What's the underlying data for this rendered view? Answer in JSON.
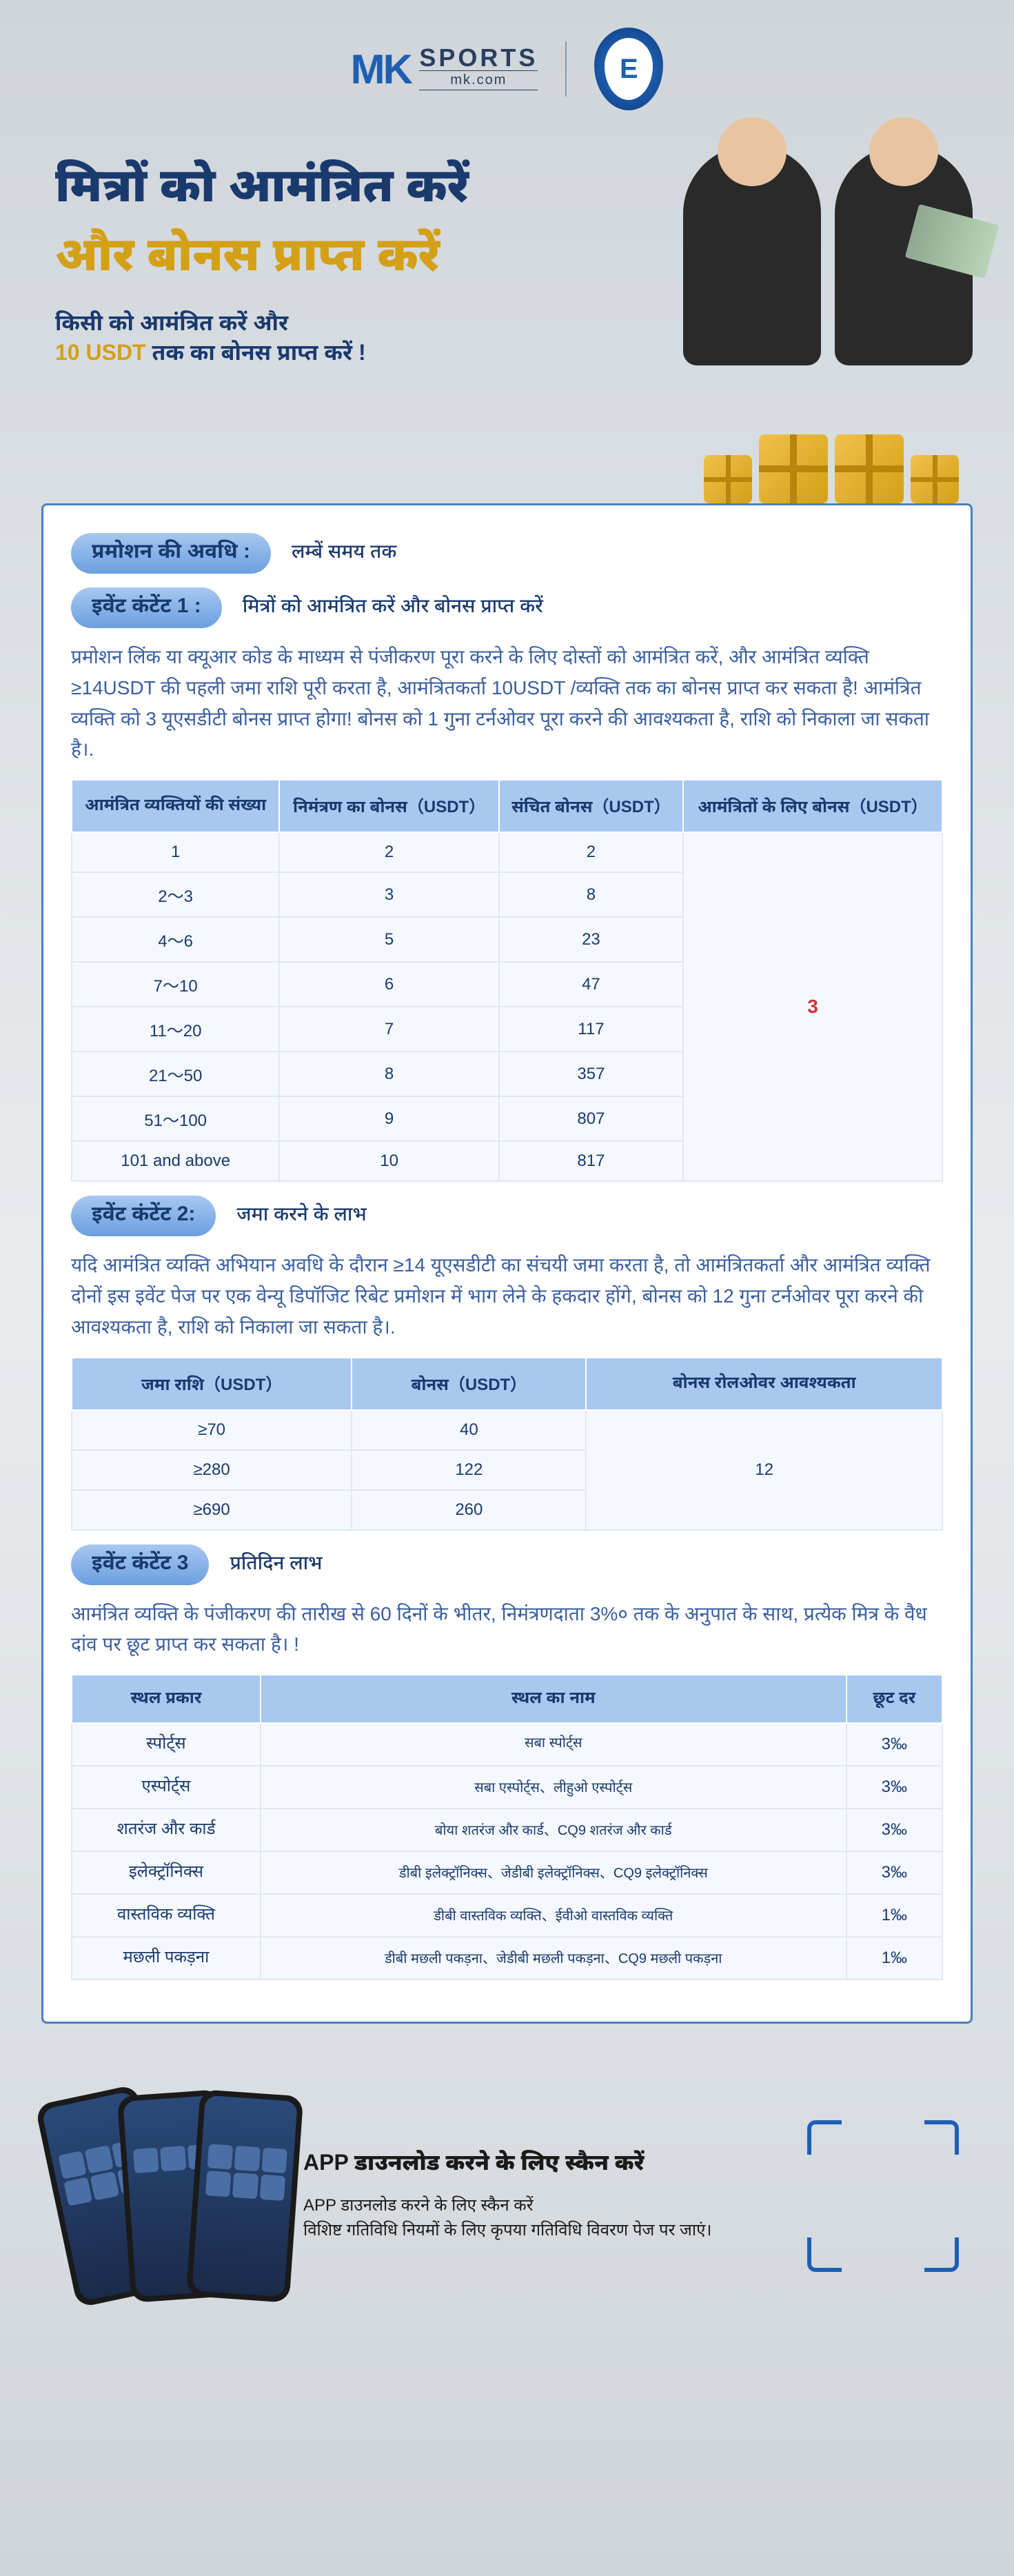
{
  "header": {
    "logo_mk": "MK",
    "logo_sports": "SPORTS",
    "logo_domain": "mk.com",
    "badge_text": "E"
  },
  "hero": {
    "title_line1": "मित्रों को आमंत्रित करें",
    "title_line2": "और बोनस प्राप्त करें",
    "sub_line1": "किसी को आमंत्रित करें और",
    "sub_amount": "10 USDT",
    "sub_line2_rest": " तक का बोनस प्राप्त करें !"
  },
  "promo_period": {
    "label": "प्रमोशन की अवधि :",
    "value": "लम्बें समय तक"
  },
  "event1": {
    "label": "इवेंट कंटेंट 1 :",
    "title": "मित्रों को आमंत्रित करें और बोनस प्राप्त करें",
    "desc": "प्रमोशन लिंक या क्यूआर कोड के माध्यम से पंजीकरण पूरा करने के लिए दोस्तों को आमंत्रित करें, और आमंत्रित व्यक्ति ≥14USDT की पहली जमा राशि पूरी करता है, आमंत्रितकर्ता 10USDT /व्यक्ति तक का बोनस प्राप्त कर सकता है! आमंत्रित व्यक्ति को 3 यूएसडीटी बोनस प्राप्त होगा! बोनस को 1 गुना टर्नओवर पूरा करने की आवश्यकता है, राशि को निकाला जा सकता है।.",
    "table": {
      "headers": [
        "आमंत्रित व्यक्तियों की संख्या",
        "निमंत्रण का बोनस（USDT）",
        "संचित बोनस（USDT）",
        "आमंत्रितों के लिए बोनस（USDT）"
      ],
      "rows": [
        [
          "1",
          "2",
          "2"
        ],
        [
          "2～3",
          "3",
          "8"
        ],
        [
          "4～6",
          "5",
          "23"
        ],
        [
          "7～10",
          "6",
          "47"
        ],
        [
          "11～20",
          "7",
          "117"
        ],
        [
          "21～50",
          "8",
          "357"
        ],
        [
          "51～100",
          "9",
          "807"
        ],
        [
          "101 and above",
          "10",
          "817"
        ]
      ],
      "merged_value": "3"
    }
  },
  "event2": {
    "label": "इवेंट कंटेंट 2:",
    "title": "जमा करने के लाभ",
    "desc": "यदि आमंत्रित व्यक्ति अभियान अवधि के दौरान ≥14 यूएसडीटी का संचयी जमा करता है, तो आमंत्रितकर्ता और आमंत्रित व्यक्ति दोनों इस इवेंट पेज पर एक वेन्यू डिपॉजिट रिबेट प्रमोशन में भाग लेने के हकदार होंगे, बोनस को 12 गुना टर्नओवर पूरा करने की आवश्यकता है, राशि को निकाला जा सकता है।.",
    "table": {
      "headers": [
        "जमा राशि（USDT）",
        "बोनस（USDT）",
        "बोनस रोलओवर आवश्यकता"
      ],
      "rows": [
        [
          "≥70",
          "40"
        ],
        [
          "≥280",
          "122"
        ],
        [
          "≥690",
          "260"
        ]
      ],
      "merged_value": "12"
    }
  },
  "event3": {
    "label": "इवेंट कंटेंट 3",
    "title": "प्रतिदिन लाभ",
    "desc": "आमंत्रित व्यक्ति के पंजीकरण की तारीख से 60 दिनों के भीतर, निमंत्रणदाता 3%० तक के अनुपात के साथ, प्रत्येक मित्र के वैध दांव पर छूट प्राप्त कर सकता है। !",
    "table": {
      "headers": [
        "स्थल प्रकार",
        "स्थल का नाम",
        "छूट दर"
      ],
      "rows": [
        [
          "स्पोर्ट्स",
          "सबा स्पोर्ट्स",
          "3‰"
        ],
        [
          "एस्पोर्ट्स",
          "सबा एस्पोर्ट्स、लीहुओ एस्पोर्ट्स",
          "3‰"
        ],
        [
          "शतरंज और कार्ड",
          "बोया शतरंज और कार्ड、CQ9 शतरंज और कार्ड",
          "3‰"
        ],
        [
          "इलेक्ट्रॉनिक्स",
          "डीबी इलेक्ट्रॉनिक्स、जेडीबी इलेक्ट्रॉनिक्स、CQ9 इलेक्ट्रॉनिक्स",
          "3‰"
        ],
        [
          "वास्तविक व्यक्ति",
          "डीबी वास्तविक व्यक्ति、ईवीओ वास्तविक व्यक्ति",
          "1‰"
        ],
        [
          "मछली पकड़ना",
          "डीबी मछली पकड़ना、जेडीबी मछली पकड़ना、CQ9 मछली पकड़ना",
          "1‰"
        ]
      ]
    }
  },
  "footer": {
    "title": "APP  डाउनलोड करने के लिए स्कैन करें",
    "desc_line1": "APP  डाउनलोड करने के लिए स्कैन करें",
    "desc_line2": "विशिष्ट गतिविधि नियमों के लिए कृपया गतिविधि विवरण पेज पर जाएं।"
  },
  "colors": {
    "primary_blue": "#1e5fb3",
    "dark_blue": "#1a3a6e",
    "gold": "#d4a017",
    "table_header": "#a8c8f0",
    "red": "#cc3333"
  }
}
